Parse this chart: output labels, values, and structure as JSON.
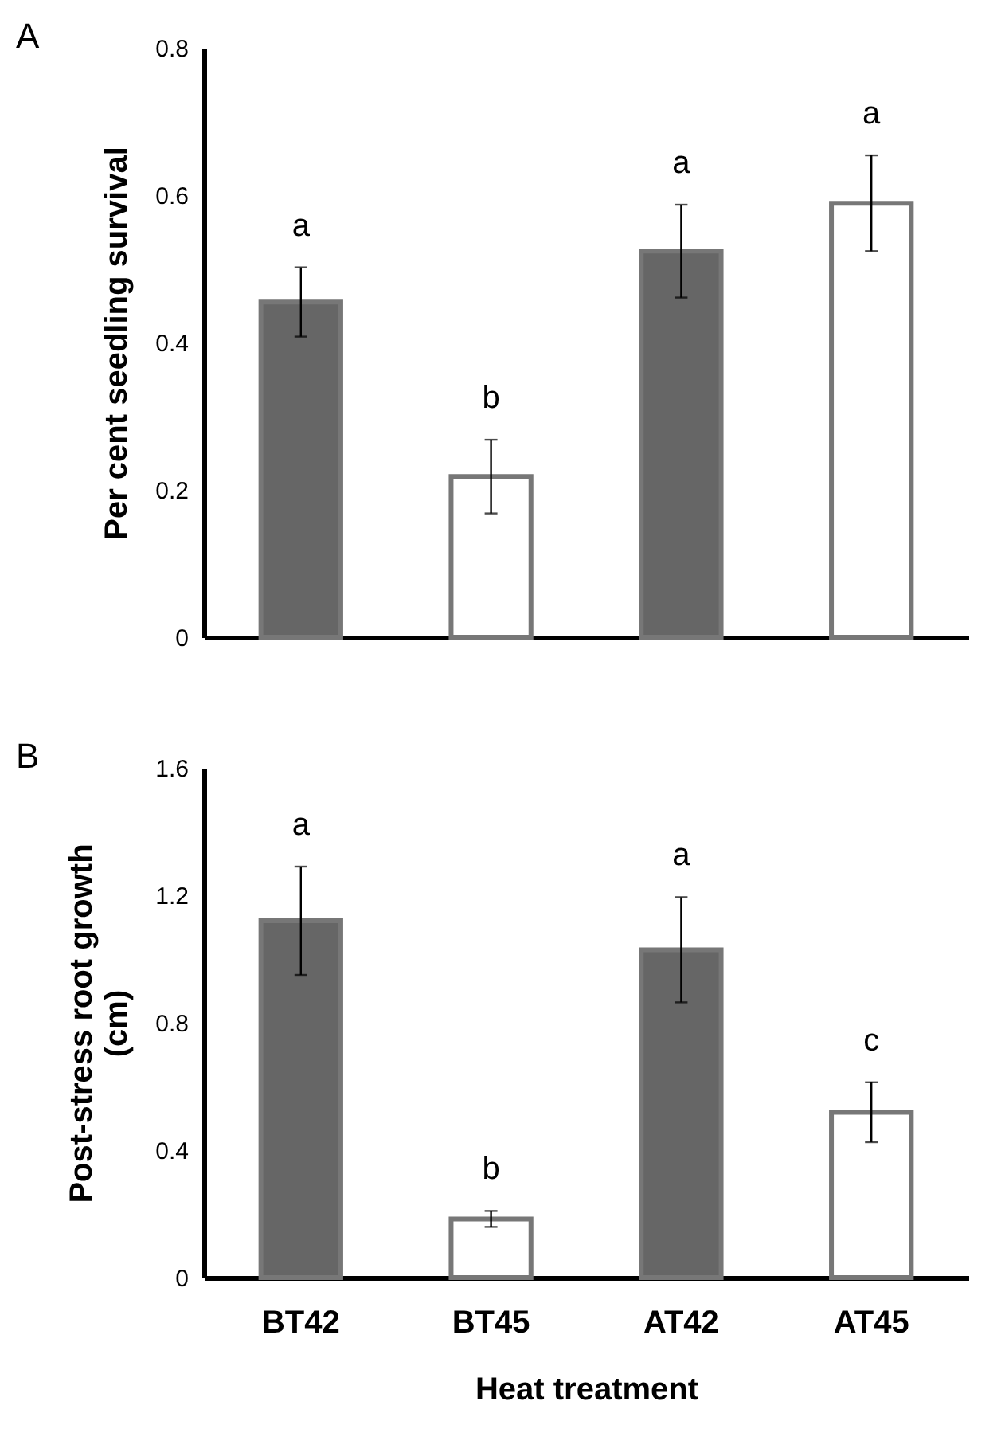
{
  "chart_data": [
    {
      "type": "bar",
      "title": "A",
      "ylabel": "Per cent seedling survival",
      "categories": [
        null,
        null,
        null,
        null
      ],
      "values": [
        0.455,
        0.218,
        0.524,
        0.589
      ],
      "colors": [
        "#666666",
        "#ffffff",
        "#666666",
        "#ffffff"
      ],
      "errors": [
        0.047,
        0.05,
        0.063,
        0.065
      ],
      "annotations": [
        "a",
        "b",
        "a",
        "a"
      ],
      "ylim": [
        0,
        0.8
      ],
      "yticks": [
        0,
        0.2,
        0.4,
        0.6,
        0.8
      ],
      "grid": false
    },
    {
      "type": "bar",
      "title": "B",
      "xlabel": "Heat treatment",
      "ylabel": "Post-stress root growth (cm)",
      "categories": [
        "BT42",
        "BT45",
        "AT42",
        "AT45"
      ],
      "values": [
        1.12,
        0.184,
        1.029,
        0.519
      ],
      "colors": [
        "#666666",
        "#ffffff",
        "#666666",
        "#ffffff"
      ],
      "errors": [
        0.17,
        0.025,
        0.165,
        0.094
      ],
      "annotations": [
        "a",
        "b",
        "a",
        "c"
      ],
      "ylim": [
        0,
        1.6
      ],
      "yticks": [
        0,
        0.4,
        0.8,
        1.2,
        1.6
      ],
      "grid": false
    }
  ]
}
